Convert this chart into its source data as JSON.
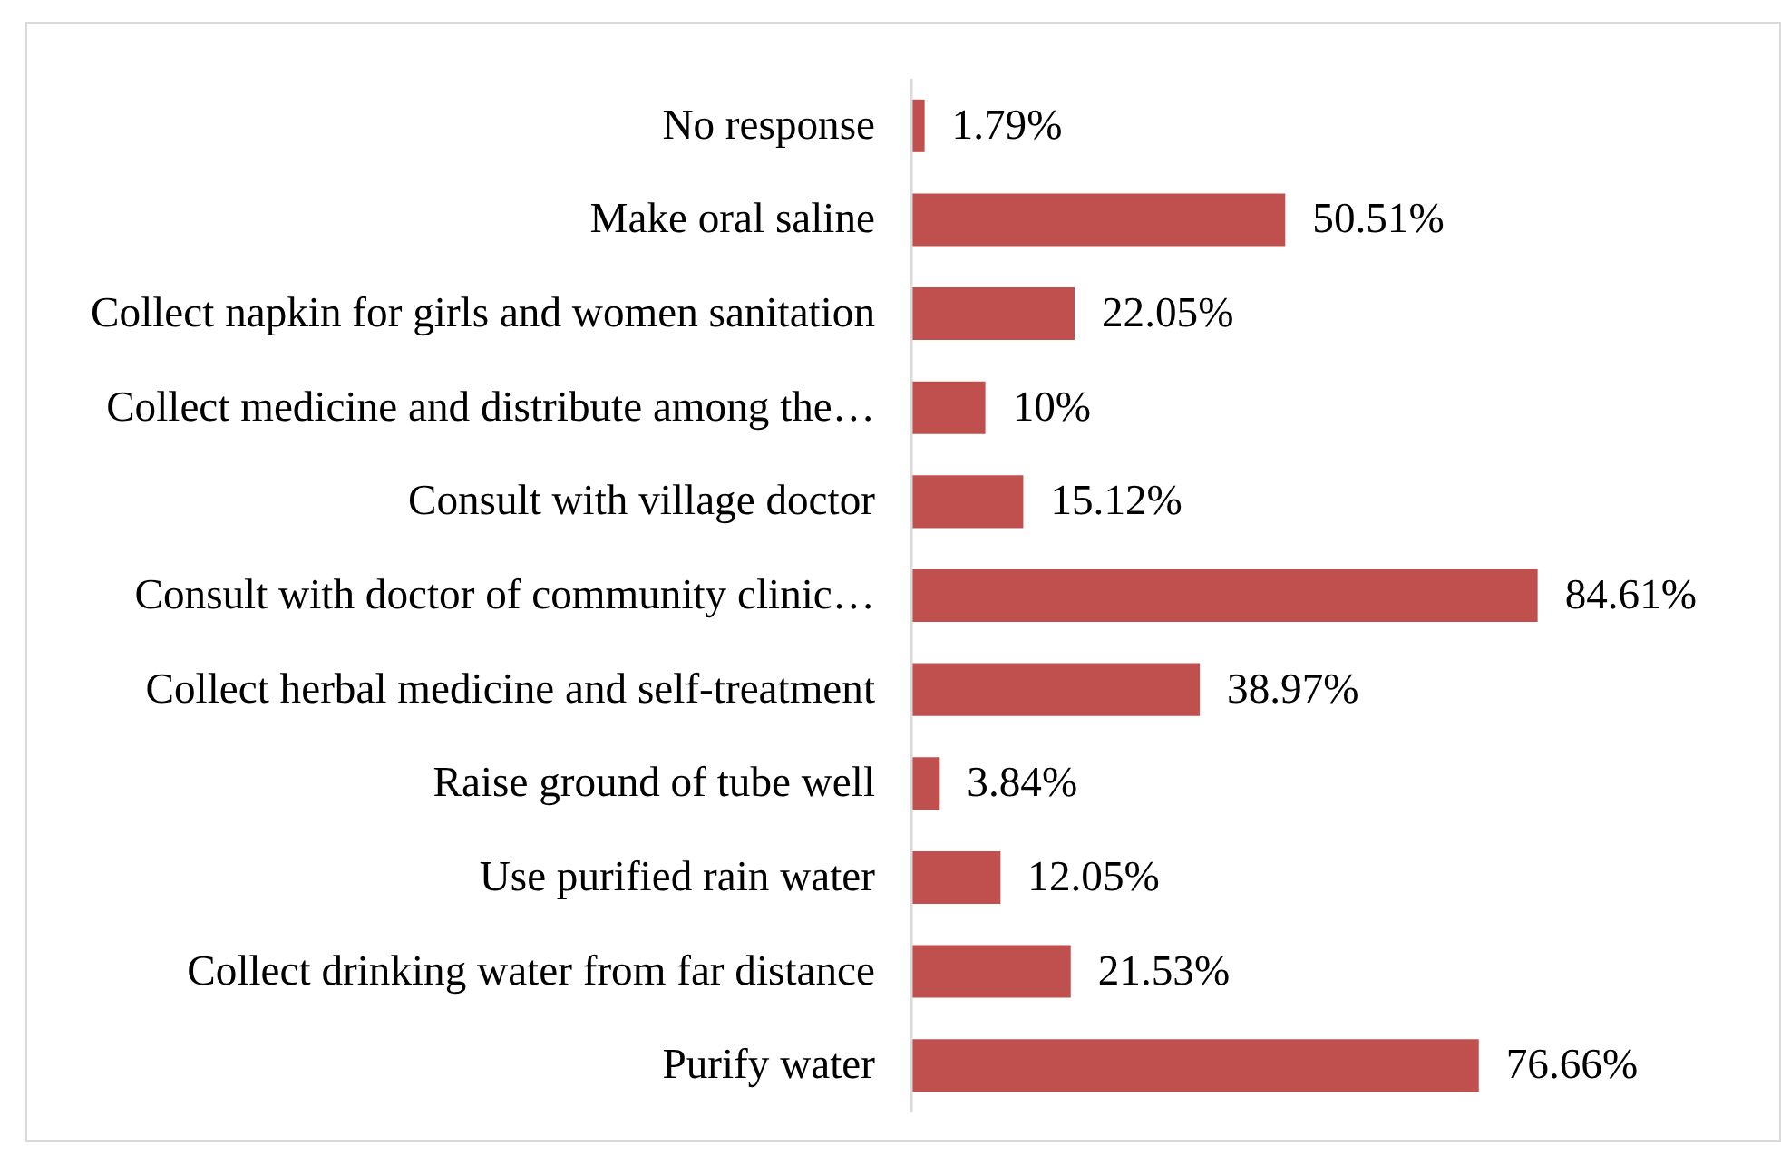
{
  "chart_data": {
    "type": "bar",
    "orientation": "horizontal",
    "categories": [
      "No response",
      "Make oral saline",
      "Collect napkin for girls and women sanitation",
      "Collect medicine and distribute among the…",
      "Consult with village doctor",
      "Consult with doctor of community clinic…",
      "Collect herbal medicine and self-treatment",
      "Raise ground of tube well",
      "Use purified rain water",
      "Collect drinking water from far distance",
      "Purify water"
    ],
    "values": [
      1.79,
      50.51,
      22.05,
      10,
      15.12,
      84.61,
      38.97,
      3.84,
      12.05,
      21.53,
      76.66
    ],
    "value_labels": [
      "1.79%",
      "50.51%",
      "22.05%",
      "10%",
      "15.12%",
      "84.61%",
      "38.97%",
      "3.84%",
      "12.05%",
      "21.53%",
      "76.66%"
    ],
    "color": "#c0504d",
    "tick_labels": "y",
    "grid": false
  }
}
